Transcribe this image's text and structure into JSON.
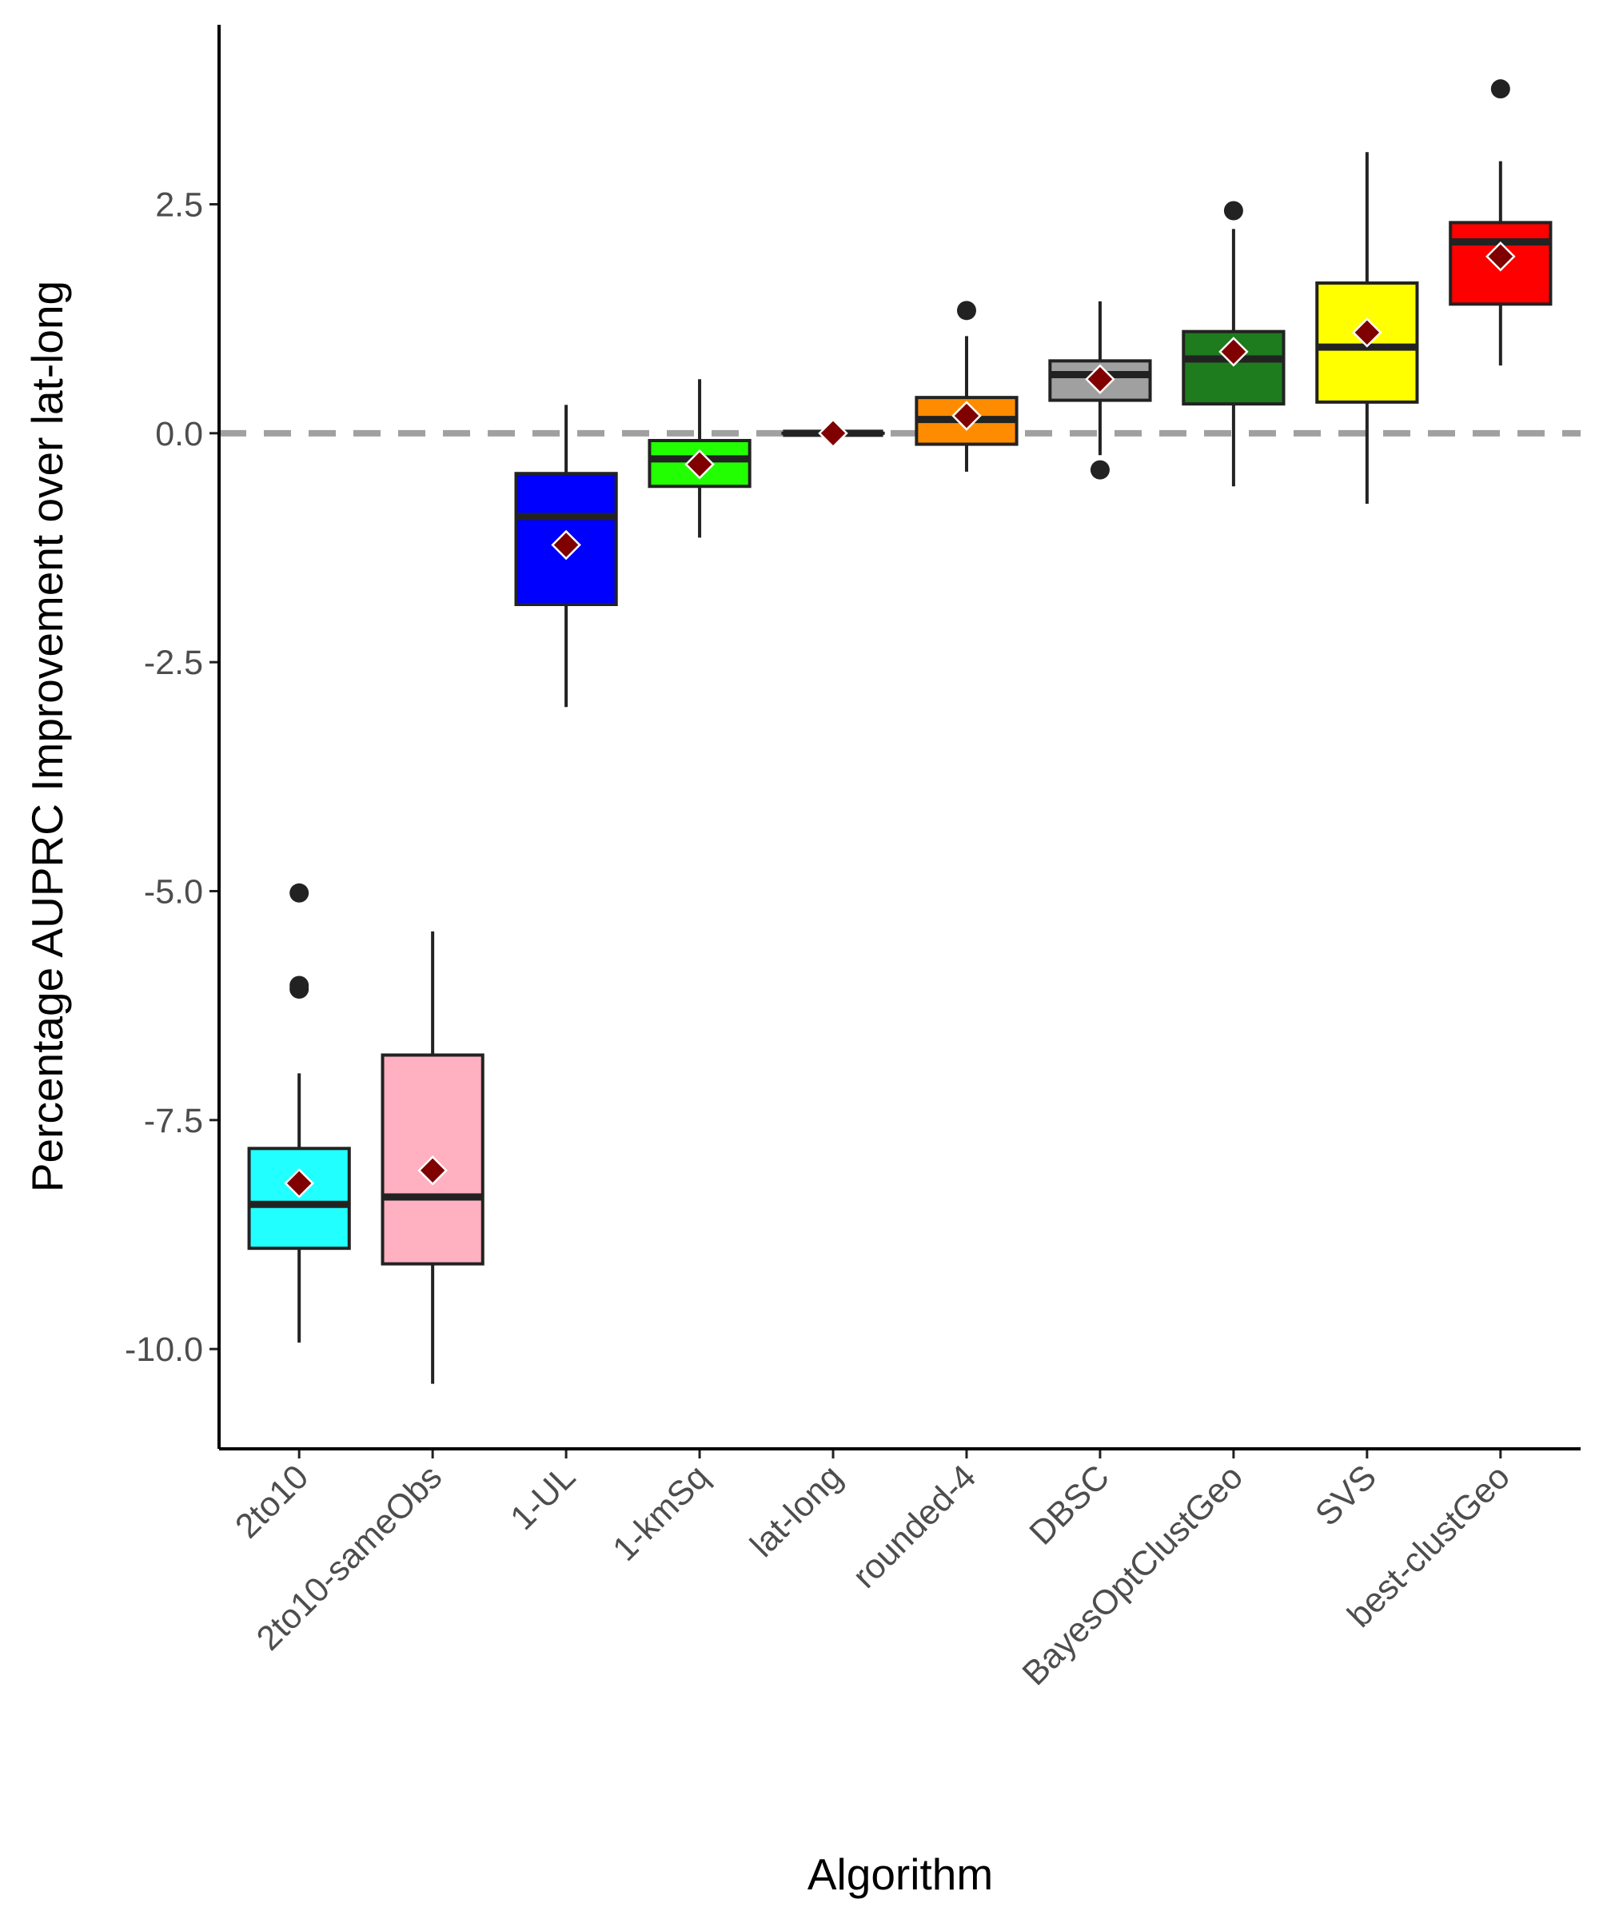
{
  "chart_data": {
    "type": "boxplot",
    "xlabel": "Algorithm",
    "ylabel": "Percentage AUPRC Improvement over lat-long",
    "categories": [
      "2to10",
      "2to10-sameObs",
      "1-UL",
      "1-kmSq",
      "lat-long",
      "rounded-4",
      "DBSC",
      "BayesOptClustGeo",
      "SVS",
      "best-clustGeo"
    ],
    "ylim": [
      -11.09,
      4.46
    ],
    "yticks": [
      {
        "value": -10,
        "label": "-10.0"
      },
      {
        "value": -7.5,
        "label": "-7.5"
      },
      {
        "value": -5,
        "label": "-5.0"
      },
      {
        "value": -2.5,
        "label": "-2.5"
      },
      {
        "value": 0,
        "label": "0.0"
      },
      {
        "value": 2.5,
        "label": "2.5"
      }
    ],
    "hline": 0,
    "boxes": [
      {
        "color": "#22ffff",
        "whisker_low": -9.93,
        "q1": -8.9,
        "median": -8.42,
        "q3": -7.81,
        "whisker_high": -6.99,
        "mean": -8.19,
        "outliers": [
          -5.02,
          -6.03,
          -6.07
        ]
      },
      {
        "color": "#ffb0c1",
        "whisker_low": -10.38,
        "q1": -9.07,
        "median": -8.34,
        "q3": -6.79,
        "whisker_high": -5.44,
        "mean": -8.05,
        "outliers": []
      },
      {
        "color": "#0000ff",
        "whisker_low": -2.99,
        "q1": -1.87,
        "median": -0.91,
        "q3": -0.44,
        "whisker_high": 0.31,
        "mean": -1.22,
        "outliers": []
      },
      {
        "color": "#22ff00",
        "whisker_low": -1.14,
        "q1": -0.58,
        "median": -0.28,
        "q3": -0.08,
        "whisker_high": 0.59,
        "mean": -0.34,
        "outliers": []
      },
      {
        "color": "#333333",
        "whisker_low": 0,
        "q1": 0,
        "median": 0,
        "q3": 0,
        "whisker_high": 0,
        "mean": 0,
        "outliers": []
      },
      {
        "color": "#ff8c00",
        "whisker_low": -0.42,
        "q1": -0.12,
        "median": 0.15,
        "q3": 0.39,
        "whisker_high": 1.06,
        "mean": 0.19,
        "outliers": [
          1.34
        ]
      },
      {
        "color": "#a0a0a0",
        "whisker_low": -0.24,
        "q1": 0.36,
        "median": 0.64,
        "q3": 0.79,
        "whisker_high": 1.44,
        "mean": 0.59,
        "outliers": [
          -0.4
        ]
      },
      {
        "color": "#1e7b1e",
        "whisker_low": -0.58,
        "q1": 0.32,
        "median": 0.81,
        "q3": 1.11,
        "whisker_high": 2.23,
        "mean": 0.89,
        "outliers": [
          2.43
        ]
      },
      {
        "color": "#ffff00",
        "whisker_low": -0.77,
        "q1": 0.34,
        "median": 0.94,
        "q3": 1.64,
        "whisker_high": 3.07,
        "mean": 1.1,
        "outliers": []
      },
      {
        "color": "#ff0000",
        "whisker_low": 0.74,
        "q1": 1.41,
        "median": 2.09,
        "q3": 2.3,
        "whisker_high": 2.97,
        "mean": 1.93,
        "outliers": [
          3.76
        ]
      }
    ]
  }
}
